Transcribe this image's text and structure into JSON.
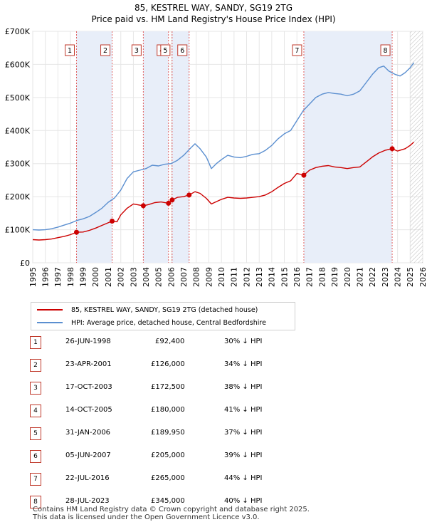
{
  "chart_data": {
    "type": "line",
    "title": "85, KESTREL WAY, SANDY, SG19 2TG",
    "subtitle": "Price paid vs. HM Land Registry's House Price Index (HPI)",
    "x_range": [
      1995,
      2026
    ],
    "ylim": [
      0,
      700000
    ],
    "x_ticks": [
      "1995",
      "1996",
      "1997",
      "1998",
      "1999",
      "2000",
      "2001",
      "2002",
      "2003",
      "2004",
      "2005",
      "2006",
      "2007",
      "2008",
      "2009",
      "2010",
      "2011",
      "2012",
      "2013",
      "2014",
      "2015",
      "2016",
      "2017",
      "2018",
      "2019",
      "2020",
      "2021",
      "2022",
      "2023",
      "2024",
      "2025",
      "2026"
    ],
    "y_ticks": [
      {
        "value": 0,
        "label": "£0"
      },
      {
        "value": 100000,
        "label": "£100K"
      },
      {
        "value": 200000,
        "label": "£200K"
      },
      {
        "value": 300000,
        "label": "£300K"
      },
      {
        "value": 400000,
        "label": "£400K"
      },
      {
        "value": 500000,
        "label": "£500K"
      },
      {
        "value": 600000,
        "label": "£600K"
      },
      {
        "value": 700000,
        "label": "£700K"
      }
    ],
    "shaded_spans": [
      [
        1998.48,
        2001.31
      ],
      [
        2003.79,
        2005.79
      ],
      [
        2006.08,
        2007.43
      ],
      [
        2016.55,
        2023.57
      ]
    ],
    "forecast_start": 2025.0,
    "legend": [
      {
        "label": "85, KESTREL WAY, SANDY, SG19 2TG (detached house)",
        "color": "#cc0000"
      },
      {
        "label": "HPI: Average price, detached house, Central Bedfordshire",
        "color": "#5b8fd0"
      }
    ],
    "series": [
      {
        "name": "HPI: Average price, detached house, Central Bedfordshire",
        "color": "#5b8fd0",
        "points": [
          [
            1995.0,
            100000
          ],
          [
            1995.5,
            99000
          ],
          [
            1996.0,
            100000
          ],
          [
            1996.5,
            103000
          ],
          [
            1997.0,
            108000
          ],
          [
            1997.5,
            114000
          ],
          [
            1998.0,
            120000
          ],
          [
            1998.5,
            128000
          ],
          [
            1999.0,
            133000
          ],
          [
            1999.5,
            140000
          ],
          [
            2000.0,
            152000
          ],
          [
            2000.5,
            165000
          ],
          [
            2001.0,
            183000
          ],
          [
            2001.5,
            196000
          ],
          [
            2002.0,
            220000
          ],
          [
            2002.5,
            255000
          ],
          [
            2003.0,
            275000
          ],
          [
            2003.5,
            280000
          ],
          [
            2004.0,
            285000
          ],
          [
            2004.5,
            295000
          ],
          [
            2005.0,
            293000
          ],
          [
            2005.5,
            298000
          ],
          [
            2006.0,
            300000
          ],
          [
            2006.5,
            310000
          ],
          [
            2007.0,
            325000
          ],
          [
            2007.5,
            345000
          ],
          [
            2007.9,
            360000
          ],
          [
            2008.3,
            345000
          ],
          [
            2008.8,
            320000
          ],
          [
            2009.2,
            285000
          ],
          [
            2009.6,
            300000
          ],
          [
            2010.0,
            312000
          ],
          [
            2010.5,
            325000
          ],
          [
            2011.0,
            320000
          ],
          [
            2011.5,
            318000
          ],
          [
            2012.0,
            322000
          ],
          [
            2012.5,
            328000
          ],
          [
            2013.0,
            330000
          ],
          [
            2013.5,
            340000
          ],
          [
            2014.0,
            355000
          ],
          [
            2014.5,
            375000
          ],
          [
            2015.0,
            390000
          ],
          [
            2015.5,
            400000
          ],
          [
            2016.0,
            430000
          ],
          [
            2016.5,
            460000
          ],
          [
            2017.0,
            480000
          ],
          [
            2017.5,
            500000
          ],
          [
            2018.0,
            510000
          ],
          [
            2018.5,
            515000
          ],
          [
            2019.0,
            512000
          ],
          [
            2019.5,
            510000
          ],
          [
            2020.0,
            505000
          ],
          [
            2020.5,
            510000
          ],
          [
            2021.0,
            520000
          ],
          [
            2021.5,
            545000
          ],
          [
            2022.0,
            570000
          ],
          [
            2022.5,
            590000
          ],
          [
            2022.9,
            595000
          ],
          [
            2023.3,
            580000
          ],
          [
            2023.8,
            570000
          ],
          [
            2024.2,
            565000
          ],
          [
            2024.6,
            575000
          ],
          [
            2025.0,
            590000
          ],
          [
            2025.3,
            605000
          ]
        ]
      },
      {
        "name": "85, KESTREL WAY, SANDY, SG19 2TG (detached house)",
        "color": "#cc0000",
        "points": [
          [
            1995.0,
            70000
          ],
          [
            1995.5,
            69000
          ],
          [
            1996.0,
            70000
          ],
          [
            1996.5,
            72000
          ],
          [
            1997.0,
            76000
          ],
          [
            1997.5,
            80000
          ],
          [
            1998.0,
            85000
          ],
          [
            1998.48,
            92400
          ],
          [
            1999.0,
            93000
          ],
          [
            1999.5,
            98000
          ],
          [
            2000.0,
            105000
          ],
          [
            2000.5,
            113000
          ],
          [
            2001.31,
            126000
          ],
          [
            2001.7,
            124000
          ],
          [
            2002.0,
            145000
          ],
          [
            2002.5,
            165000
          ],
          [
            2003.0,
            178000
          ],
          [
            2003.79,
            172500
          ],
          [
            2004.2,
            176000
          ],
          [
            2004.7,
            182000
          ],
          [
            2005.2,
            184000
          ],
          [
            2005.79,
            180000
          ],
          [
            2006.08,
            189950
          ],
          [
            2006.5,
            198000
          ],
          [
            2007.0,
            200000
          ],
          [
            2007.43,
            205000
          ],
          [
            2007.9,
            215000
          ],
          [
            2008.3,
            210000
          ],
          [
            2008.8,
            195000
          ],
          [
            2009.2,
            178000
          ],
          [
            2009.6,
            185000
          ],
          [
            2010.0,
            192000
          ],
          [
            2010.5,
            198000
          ],
          [
            2011.0,
            196000
          ],
          [
            2011.5,
            195000
          ],
          [
            2012.0,
            196000
          ],
          [
            2012.5,
            198000
          ],
          [
            2013.0,
            200000
          ],
          [
            2013.5,
            205000
          ],
          [
            2014.0,
            215000
          ],
          [
            2014.5,
            228000
          ],
          [
            2015.0,
            240000
          ],
          [
            2015.5,
            248000
          ],
          [
            2016.0,
            270000
          ],
          [
            2016.55,
            265000
          ],
          [
            2017.0,
            280000
          ],
          [
            2017.5,
            288000
          ],
          [
            2018.0,
            292000
          ],
          [
            2018.5,
            294000
          ],
          [
            2019.0,
            290000
          ],
          [
            2019.5,
            288000
          ],
          [
            2020.0,
            285000
          ],
          [
            2020.5,
            288000
          ],
          [
            2021.0,
            290000
          ],
          [
            2021.5,
            305000
          ],
          [
            2022.0,
            320000
          ],
          [
            2022.5,
            332000
          ],
          [
            2023.0,
            340000
          ],
          [
            2023.57,
            345000
          ],
          [
            2024.0,
            338000
          ],
          [
            2024.6,
            345000
          ],
          [
            2025.0,
            355000
          ],
          [
            2025.3,
            365000
          ]
        ]
      }
    ],
    "sales": [
      {
        "num": "1",
        "date": "26-JUN-1998",
        "price": "£92,400",
        "hpi": "30% ↓ HPI",
        "x": 1998.48,
        "value": 92400
      },
      {
        "num": "2",
        "date": "23-APR-2001",
        "price": "£126,000",
        "hpi": "34% ↓ HPI",
        "x": 2001.31,
        "value": 126000
      },
      {
        "num": "3",
        "date": "17-OCT-2003",
        "price": "£172,500",
        "hpi": "38% ↓ HPI",
        "x": 2003.79,
        "value": 172500
      },
      {
        "num": "4",
        "date": "14-OCT-2005",
        "price": "£180,000",
        "hpi": "41% ↓ HPI",
        "x": 2005.79,
        "value": 180000
      },
      {
        "num": "5",
        "date": "31-JAN-2006",
        "price": "£189,950",
        "hpi": "37% ↓ HPI",
        "x": 2006.08,
        "value": 189950
      },
      {
        "num": "6",
        "date": "05-JUN-2007",
        "price": "£205,000",
        "hpi": "39% ↓ HPI",
        "x": 2007.43,
        "value": 205000
      },
      {
        "num": "7",
        "date": "22-JUL-2016",
        "price": "£265,000",
        "hpi": "44% ↓ HPI",
        "x": 2016.55,
        "value": 265000
      },
      {
        "num": "8",
        "date": "28-JUL-2023",
        "price": "£345,000",
        "hpi": "40% ↓ HPI",
        "x": 2023.57,
        "value": 345000
      }
    ]
  },
  "footer": {
    "line1": "Contains HM Land Registry data © Crown copyright and database right 2025.",
    "line2": "This data is licensed under the Open Government Licence v3.0."
  }
}
